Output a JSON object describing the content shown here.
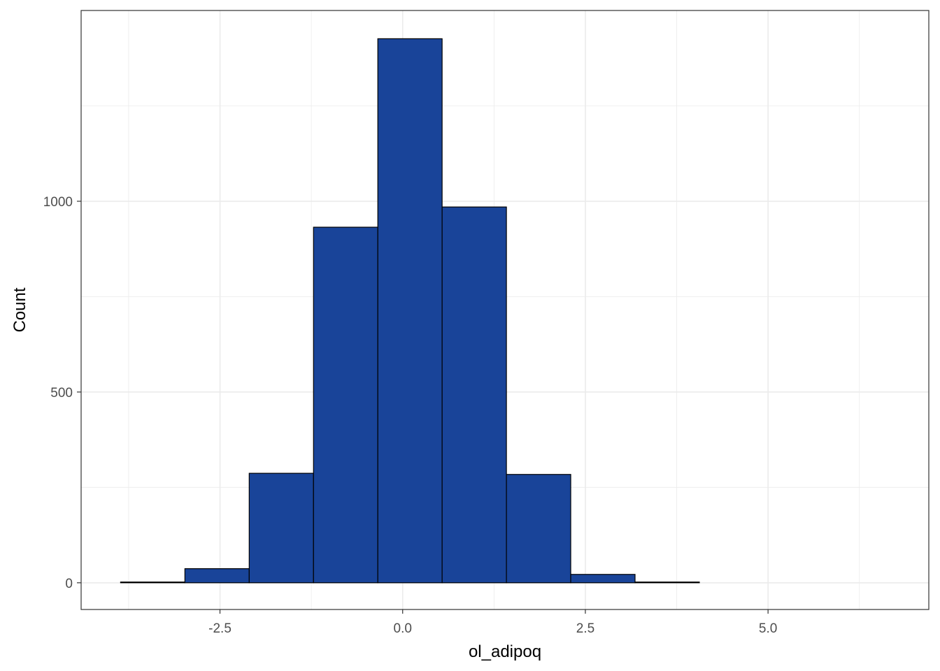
{
  "chart_data": {
    "type": "bar",
    "title": "",
    "xlabel": "ol_adipoq",
    "ylabel": "Count",
    "bin_width": 0.88,
    "bins": [
      {
        "x0": -3.86,
        "x1": -2.98,
        "count": 2
      },
      {
        "x0": -2.98,
        "x1": -2.1,
        "count": 37
      },
      {
        "x0": -2.1,
        "x1": -1.22,
        "count": 287
      },
      {
        "x0": -1.22,
        "x1": -0.34,
        "count": 932
      },
      {
        "x0": -0.34,
        "x1": 0.54,
        "count": 1426
      },
      {
        "x0": 0.54,
        "x1": 1.42,
        "count": 985
      },
      {
        "x0": 1.42,
        "x1": 2.3,
        "count": 284
      },
      {
        "x0": 2.3,
        "x1": 3.18,
        "count": 22
      },
      {
        "x0": 3.18,
        "x1": 4.06,
        "count": 2
      },
      {
        "x0": 4.06,
        "x1": 4.94,
        "count": 0
      },
      {
        "x0": 4.94,
        "x1": 5.82,
        "count": 0
      },
      {
        "x0": 5.82,
        "x1": 6.7,
        "count": 0
      }
    ],
    "xlim": [
      -4.4,
      7.2
    ],
    "ylim": [
      -70,
      1500
    ],
    "x_ticks": [
      -2.5,
      0.0,
      2.5,
      5.0
    ],
    "x_tick_labels": [
      "-2.5",
      "0.0",
      "2.5",
      "5.0"
    ],
    "y_ticks": [
      0,
      500,
      1000
    ],
    "y_tick_labels": [
      "0",
      "500",
      "1000"
    ],
    "x_minor_ticks": [
      -3.75,
      -1.25,
      1.25,
      3.75,
      6.25
    ],
    "y_minor_ticks": [
      250,
      750,
      1250
    ],
    "grid": true,
    "legend": "none",
    "colors": {
      "bar_fill": "#194499",
      "bar_stroke": "#000000",
      "grid": "#ebebeb",
      "panel_border": "#333333",
      "tick_text": "#4d4d4d"
    }
  }
}
